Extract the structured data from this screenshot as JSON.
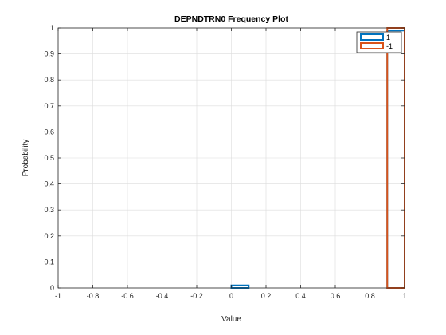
{
  "chart_data": {
    "type": "bar",
    "title": "DEPNDTRN0 Frequency Plot",
    "xlabel": "Value",
    "ylabel": "Probability",
    "xlim": [
      -1,
      1
    ],
    "ylim": [
      0,
      1
    ],
    "xticks": [
      "-1",
      "-0.8",
      "-0.6",
      "-0.4",
      "-0.2",
      "0",
      "0.2",
      "0.4",
      "0.6",
      "0.8",
      "1"
    ],
    "yticks": [
      "0",
      "0.1",
      "0.2",
      "0.3",
      "0.4",
      "0.5",
      "0.6",
      "0.7",
      "0.8",
      "0.9",
      "1"
    ],
    "grid": true,
    "legend_location": "top-right",
    "bin_edges": [
      -1,
      -0.9,
      -0.8,
      -0.7,
      -0.6,
      -0.5,
      -0.4,
      -0.3,
      -0.2,
      -0.1,
      0,
      0.1,
      0.2,
      0.3,
      0.4,
      0.5,
      0.6,
      0.7,
      0.8,
      0.9,
      1
    ],
    "series": [
      {
        "name": "1",
        "color": "#0072BD",
        "values": [
          0,
          0,
          0,
          0,
          0,
          0,
          0,
          0,
          0,
          0,
          0.01,
          0,
          0,
          0,
          0,
          0,
          0,
          0,
          0,
          0.99
        ]
      },
      {
        "name": "-1",
        "color": "#D95319",
        "values": [
          0,
          0,
          0,
          0,
          0,
          0,
          0,
          0,
          0,
          0,
          0,
          0,
          0,
          0,
          0,
          0,
          0,
          0,
          0,
          1
        ]
      }
    ]
  }
}
